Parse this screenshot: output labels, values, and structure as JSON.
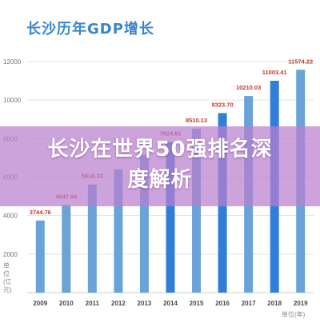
{
  "page": {
    "title": "长沙历年GDP增长"
  },
  "banner": {
    "line1": "长沙在世界50强排名深",
    "line2": "度解析"
  },
  "units": {
    "y": "单位(亿元)",
    "x": "单位(年)"
  },
  "colors": {
    "bar_light": "#69a3d8",
    "bar_dark": "#2f7fd9",
    "value_label": "#c0392b",
    "axis_text": "#555555",
    "grid": "#e3e3e3",
    "banner": "#ba80ce",
    "title": "#3a86c8"
  },
  "chart_data": {
    "type": "bar",
    "title": "长沙历年GDP增长",
    "xlabel": "单位(年)",
    "ylabel": "单位(亿元)",
    "categories": [
      "2009",
      "2010",
      "2011",
      "2012",
      "2013",
      "2014",
      "2015",
      "2016",
      "2017",
      "2018",
      "2019"
    ],
    "values": [
      3744.76,
      4547.06,
      5619.33,
      6399.91,
      7153.13,
      7824.81,
      8510.13,
      9323.7,
      10210.03,
      11003.41,
      11574.22
    ],
    "labels": [
      "3744.76",
      "4547.06",
      "5619.33",
      "",
      "",
      "7824.81",
      "8510.13",
      "9323.70",
      "10210.03",
      "11003.41",
      "11574.22"
    ],
    "highlight": [
      "2014",
      "2016",
      "2018"
    ],
    "ylim": [
      0,
      12000
    ],
    "yticks": [
      0,
      2000,
      4000,
      6000,
      8000,
      10000,
      12000
    ],
    "grid": true
  }
}
